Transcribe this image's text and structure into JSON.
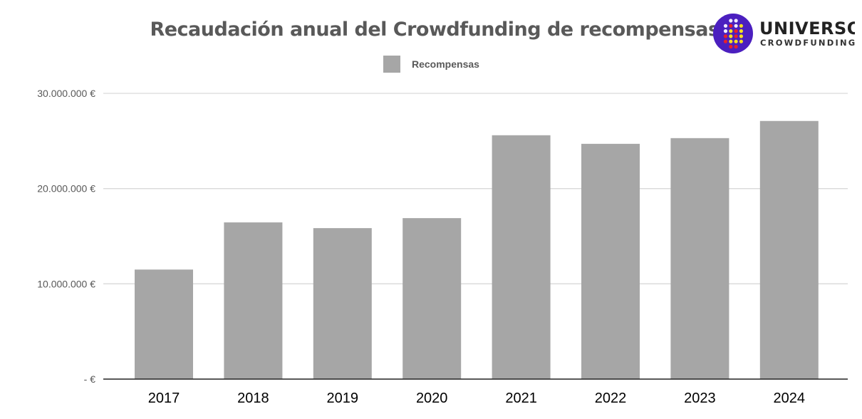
{
  "chart_data": {
    "type": "bar",
    "title": "Recaudación anual del Crowdfunding de recompensas",
    "categories": [
      "2017",
      "2018",
      "2019",
      "2020",
      "2021",
      "2022",
      "2023",
      "2024"
    ],
    "series": [
      {
        "name": "Recompensas",
        "color": "#a6a6a6",
        "values": [
          11500000,
          16450000,
          15850000,
          16900000,
          25600000,
          24700000,
          25300000,
          27100000
        ]
      }
    ],
    "ylim": [
      0,
      30000000
    ],
    "yticks": [
      0,
      10000000,
      20000000,
      30000000
    ],
    "ytick_labels": [
      "-  €",
      "10.000.000 €",
      "20.000.000 €",
      "30.000.000 €"
    ],
    "grid": true,
    "legend": "top-center",
    "xlabel": "",
    "ylabel": ""
  },
  "logo": {
    "name": "UNIVERSO",
    "sub": "CROWDFUNDING",
    "color": "#4b1fbf"
  }
}
